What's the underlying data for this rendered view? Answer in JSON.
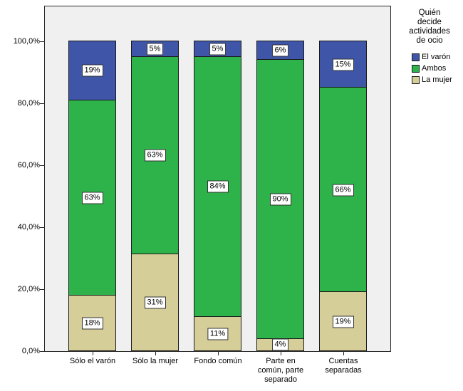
{
  "chart_data": {
    "type": "bar",
    "stacked": true,
    "units": "percent",
    "plot_background": "#F0F0F0",
    "bar_border_color": "#1A1A1A",
    "categories": [
      "Sólo el varón",
      "Sólo la mujer",
      "Fondo común",
      "Parte en común, parte separado",
      "Cuentas separadas"
    ],
    "category_lines": [
      [
        "Sólo el varón"
      ],
      [
        "Sólo la mujer"
      ],
      [
        "Fondo común"
      ],
      [
        "Parte en",
        "común, parte",
        "separado"
      ],
      [
        "Cuentas",
        "separadas"
      ]
    ],
    "series_order": "bottom-to-top",
    "series": [
      {
        "name": "La mujer",
        "color": "#D6CE99",
        "values": [
          18,
          31,
          11,
          4,
          19
        ],
        "labels": [
          "18%",
          "31%",
          "11%",
          "4%",
          "19%"
        ]
      },
      {
        "name": "Ambos",
        "color": "#2EB24A",
        "values": [
          63,
          63,
          84,
          90,
          66
        ],
        "labels": [
          "63%",
          "63%",
          "84%",
          "90%",
          "66%"
        ]
      },
      {
        "name": "El varón",
        "color": "#3E55A8",
        "values": [
          19,
          5,
          5,
          6,
          15
        ],
        "labels": [
          "19%",
          "5%",
          "5%",
          "6%",
          "15%"
        ]
      }
    ],
    "y_axis": {
      "min": 0,
      "max": 100,
      "grid": false,
      "ticks": [
        {
          "value": 0,
          "label": "0,0%"
        },
        {
          "value": 20,
          "label": "20,0%"
        },
        {
          "value": 40,
          "label": "40,0%"
        },
        {
          "value": 60,
          "label": "60,0%"
        },
        {
          "value": 80,
          "label": "80,0%"
        },
        {
          "value": 100,
          "label": "100,0%"
        }
      ]
    },
    "legend": {
      "position": "outside-top-right",
      "title": "Quién decide actividades de ocio",
      "title_lines": [
        "Quién",
        "decide",
        "actividades",
        "de ocio"
      ],
      "items": [
        {
          "label": "El varón",
          "color": "#3E55A8"
        },
        {
          "label": "Ambos",
          "color": "#2EB24A"
        },
        {
          "label": "La mujer",
          "color": "#D6CE99"
        }
      ]
    }
  }
}
